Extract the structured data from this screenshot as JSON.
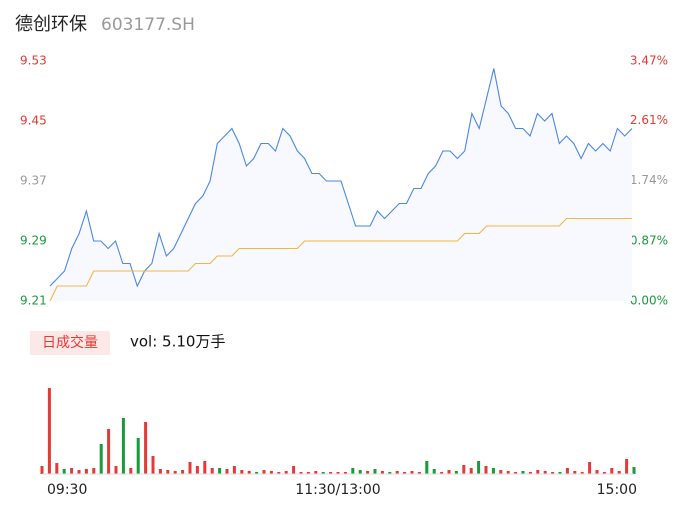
{
  "chart_data": [
    {
      "type": "line",
      "title": "德创环保",
      "subtitle": "603177.SH",
      "x": [
        0,
        3,
        6,
        9,
        12,
        15,
        18,
        21,
        24,
        27,
        30,
        33,
        36,
        39,
        42,
        45,
        48,
        51,
        54,
        57,
        60,
        63,
        66,
        69,
        72,
        75,
        78,
        81,
        84,
        87,
        90,
        93,
        96,
        99,
        102,
        105,
        108,
        111,
        114,
        117,
        120,
        123,
        126,
        129,
        132,
        135,
        138,
        141,
        144,
        147,
        150,
        153,
        156,
        159,
        162,
        165,
        168,
        171,
        174,
        177,
        180,
        183,
        186,
        189,
        192,
        195,
        198,
        201,
        204,
        207,
        210,
        213,
        216,
        219,
        222,
        225,
        228,
        231,
        234,
        237,
        240
      ],
      "xlim": [
        0,
        240
      ],
      "series": [
        {
          "color": "#4a86e8",
          "values": [
            9.23,
            9.24,
            9.25,
            9.28,
            9.3,
            9.33,
            9.29,
            9.29,
            9.28,
            9.29,
            9.26,
            9.26,
            9.23,
            9.25,
            9.26,
            9.3,
            9.27,
            9.28,
            9.3,
            9.32,
            9.34,
            9.35,
            9.37,
            9.42,
            9.43,
            9.44,
            9.42,
            9.39,
            9.4,
            9.42,
            9.42,
            9.41,
            9.44,
            9.43,
            9.41,
            9.4,
            9.38,
            9.38,
            9.37,
            9.37,
            9.37,
            9.34,
            9.31,
            9.31,
            9.31,
            9.33,
            9.32,
            9.33,
            9.34,
            9.34,
            9.36,
            9.36,
            9.38,
            9.39,
            9.41,
            9.41,
            9.4,
            9.41,
            9.46,
            9.44,
            9.48,
            9.52,
            9.47,
            9.46,
            9.44,
            9.44,
            9.43,
            9.46,
            9.45,
            9.46,
            9.42,
            9.43,
            9.42,
            9.4,
            9.42,
            9.41,
            9.42,
            9.41,
            9.44,
            9.43,
            9.44
          ]
        },
        {
          "color": "#f0b840",
          "values": [
            9.21,
            9.23,
            9.23,
            9.23,
            9.23,
            9.23,
            9.25,
            9.25,
            9.25,
            9.25,
            9.25,
            9.25,
            9.25,
            9.25,
            9.25,
            9.25,
            9.25,
            9.25,
            9.25,
            9.25,
            9.26,
            9.26,
            9.26,
            9.27,
            9.27,
            9.27,
            9.28,
            9.28,
            9.28,
            9.28,
            9.28,
            9.28,
            9.28,
            9.28,
            9.28,
            9.29,
            9.29,
            9.29,
            9.29,
            9.29,
            9.29,
            9.29,
            9.29,
            9.29,
            9.29,
            9.29,
            9.29,
            9.29,
            9.29,
            9.29,
            9.29,
            9.29,
            9.29,
            9.29,
            9.29,
            9.29,
            9.29,
            9.3,
            9.3,
            9.3,
            9.31,
            9.31,
            9.31,
            9.31,
            9.31,
            9.31,
            9.31,
            9.31,
            9.31,
            9.31,
            9.31,
            9.32,
            9.32,
            9.32,
            9.32,
            9.32,
            9.32,
            9.32,
            9.32,
            9.32,
            9.32
          ]
        }
      ],
      "ylim": [
        9.21,
        9.53
      ],
      "yticks": [
        9.53,
        9.45,
        9.37,
        9.29,
        9.21
      ],
      "y2lim": [
        0,
        3.47
      ],
      "y2ticks": [
        {
          "value": 3.47,
          "label": "3.47%"
        },
        {
          "value": 2.61,
          "label": "2.61%"
        },
        {
          "value": 1.74,
          "label": "1.74%"
        },
        {
          "value": 0.87,
          "label": "0.87%"
        },
        {
          "value": 0,
          "label": "0.00%"
        }
      ],
      "tick_colors": [
        "#e53935",
        "#e53935",
        "#999999",
        "#1a9a3a",
        "#1a9a3a"
      ],
      "fill": "#f7f9fe"
    },
    {
      "type": "bar",
      "label": "日成交量",
      "annotation": "vol: 5.10万手",
      "x": [
        0,
        3,
        6,
        9,
        12,
        15,
        18,
        21,
        24,
        27,
        30,
        33,
        36,
        39,
        42,
        45,
        48,
        51,
        54,
        57,
        60,
        63,
        66,
        69,
        72,
        75,
        78,
        81,
        84,
        87,
        90,
        93,
        96,
        99,
        102,
        105,
        108,
        111,
        114,
        117,
        120,
        123,
        126,
        129,
        132,
        135,
        138,
        141,
        144,
        147,
        150,
        153,
        156,
        159,
        162,
        165,
        168,
        171,
        174,
        177,
        180,
        183,
        186,
        189,
        192,
        195,
        198,
        201,
        204,
        207,
        210,
        213,
        216,
        219,
        222,
        225,
        228,
        231,
        234,
        237,
        240
      ],
      "xlim": [
        0,
        240
      ],
      "xticks": [
        {
          "value": 0,
          "label": "09:30"
        },
        {
          "value": 120,
          "label": "11:30/13:00"
        },
        {
          "value": 240,
          "label": "15:00"
        }
      ],
      "ylim": [
        0,
        1000
      ],
      "values": [
        80,
        860,
        110,
        50,
        60,
        40,
        50,
        60,
        300,
        450,
        80,
        560,
        60,
        360,
        520,
        180,
        50,
        40,
        30,
        40,
        120,
        80,
        130,
        60,
        60,
        50,
        80,
        40,
        30,
        20,
        40,
        30,
        20,
        30,
        80,
        20,
        20,
        30,
        20,
        20,
        20,
        20,
        60,
        40,
        30,
        50,
        30,
        20,
        30,
        20,
        30,
        20,
        130,
        50,
        20,
        40,
        30,
        90,
        60,
        130,
        80,
        60,
        40,
        30,
        20,
        30,
        20,
        40,
        30,
        20,
        20,
        60,
        30,
        20,
        120,
        40,
        20,
        60,
        30,
        150,
        70
      ],
      "colors": [
        "#e53935",
        "#e53935",
        "#e53935",
        "#1a9a3a",
        "#e53935",
        "#e53935",
        "#e53935",
        "#e53935",
        "#1a9a3a",
        "#e53935",
        "#e53935",
        "#1a9a3a",
        "#e53935",
        "#1a9a3a",
        "#e53935",
        "#e53935",
        "#e53935",
        "#e53935",
        "#e53935",
        "#e53935",
        "#e53935",
        "#e53935",
        "#e53935",
        "#e53935",
        "#1a9a3a",
        "#e53935",
        "#e53935",
        "#e53935",
        "#e53935",
        "#1a9a3a",
        "#e53935",
        "#e53935",
        "#e53935",
        "#e53935",
        "#e53935",
        "#e53935",
        "#e53935",
        "#e53935",
        "#1a9a3a",
        "#e53935",
        "#e53935",
        "#e53935",
        "#1a9a3a",
        "#1a9a3a",
        "#e53935",
        "#1a9a3a",
        "#e53935",
        "#1a9a3a",
        "#e53935",
        "#e53935",
        "#e53935",
        "#e53935",
        "#1a9a3a",
        "#1a9a3a",
        "#e53935",
        "#e53935",
        "#1a9a3a",
        "#e53935",
        "#e53935",
        "#1a9a3a",
        "#e53935",
        "#1a9a3a",
        "#e53935",
        "#e53935",
        "#e53935",
        "#1a9a3a",
        "#e53935",
        "#e53935",
        "#e53935",
        "#e53935",
        "#1a9a3a",
        "#e53935",
        "#e53935",
        "#e53935",
        "#e53935",
        "#e53935",
        "#e53935",
        "#e53935",
        "#e53935",
        "#e53935",
        "#1a9a3a"
      ],
      "label_color": "#e53935",
      "label_background": "#fde8e8"
    }
  ]
}
